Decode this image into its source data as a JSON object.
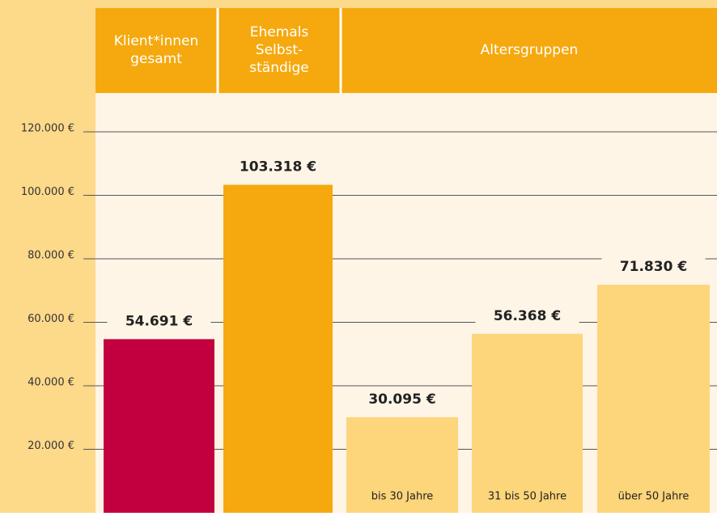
{
  "chart_data": {
    "type": "bar",
    "header_groups": [
      [
        "Klient*innen",
        "gesamt"
      ],
      [
        "Ehemals",
        "Selbst-",
        "ständige"
      ],
      [
        "Altersgruppen"
      ]
    ],
    "categories": [
      null,
      null,
      "bis 30 Jahre",
      "31 bis 50 Jahre",
      "über 50 Jahre"
    ],
    "values": [
      54691,
      103318,
      30095,
      56368,
      71830
    ],
    "value_labels": [
      "54.691 €",
      "103.318 €",
      "30.095 €",
      "56.368 €",
      "71.830 €"
    ],
    "colors": [
      "#c3003f",
      "#f5a90f",
      "#fdd57a",
      "#fdd57a",
      "#fdd57a"
    ],
    "ylim": [
      0,
      120000
    ],
    "yticks": [
      {
        "value": 20000,
        "label": "20.000 €"
      },
      {
        "value": 40000,
        "label": "40.000 €"
      },
      {
        "value": 60000,
        "label": "60.000 €"
      },
      {
        "value": 80000,
        "label": "80.000 €"
      },
      {
        "value": 100000,
        "label": "100.000 €"
      },
      {
        "value": 120000,
        "label": "120.000 €"
      }
    ],
    "grid": true
  }
}
